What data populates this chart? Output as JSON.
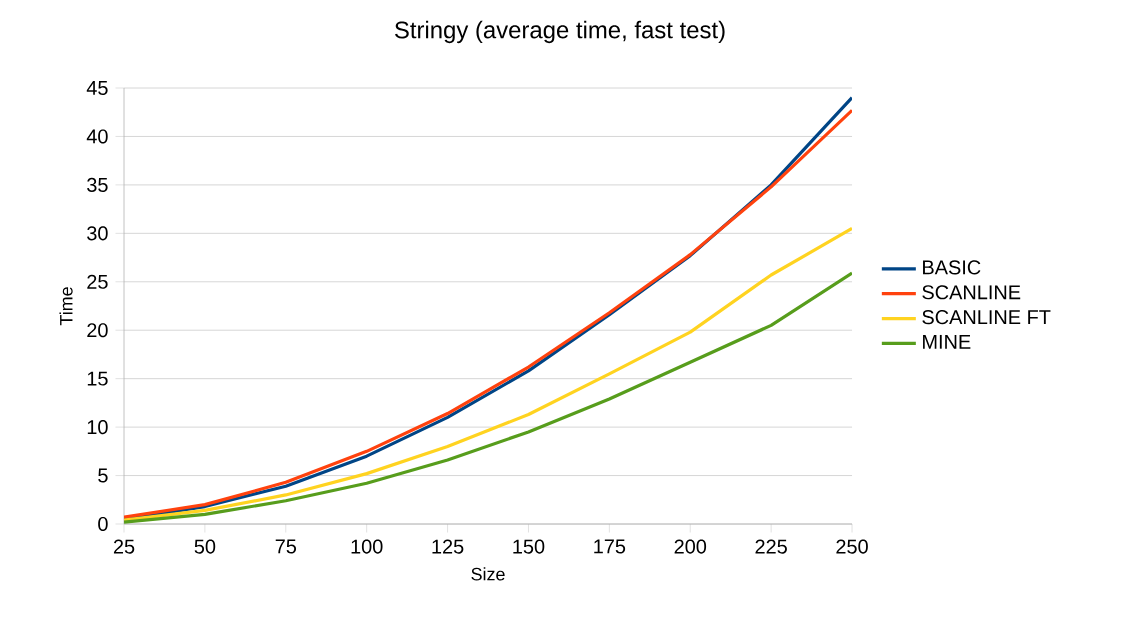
{
  "chart_data": {
    "type": "line",
    "title": "Stringy (average time, fast test)",
    "xlabel": "Size",
    "ylabel": "Time",
    "x": [
      25,
      50,
      75,
      100,
      125,
      150,
      175,
      200,
      225,
      250
    ],
    "series": [
      {
        "name": "BASIC",
        "color": "#004586",
        "values": [
          0.5,
          1.8,
          3.9,
          7,
          11,
          15.8,
          21.6,
          27.7,
          35,
          44
        ]
      },
      {
        "name": "SCANLINE",
        "color": "#ff420e",
        "values": [
          0.7,
          2.0,
          4.3,
          7.5,
          11.4,
          16.2,
          21.8,
          27.8,
          34.8,
          42.7
        ]
      },
      {
        "name": "SCANLINE FT",
        "color": "#ffd320",
        "values": [
          0.4,
          1.4,
          3.0,
          5.2,
          8.0,
          11.3,
          15.5,
          19.8,
          25.7,
          30.5
        ]
      },
      {
        "name": "MINE",
        "color": "#579d1c",
        "values": [
          0.2,
          1.0,
          2.4,
          4.2,
          6.6,
          9.5,
          12.9,
          16.7,
          20.5,
          25.9
        ]
      }
    ],
    "xlim": [
      25,
      250
    ],
    "xticks": [
      25,
      50,
      75,
      100,
      125,
      150,
      175,
      200,
      225,
      250
    ],
    "ylim": [
      0,
      45
    ],
    "yticks": [
      0,
      5,
      10,
      15,
      20,
      25,
      30,
      35,
      40,
      45
    ],
    "grid": "y",
    "legend": "right",
    "marker": "none",
    "line_style": "solid"
  }
}
